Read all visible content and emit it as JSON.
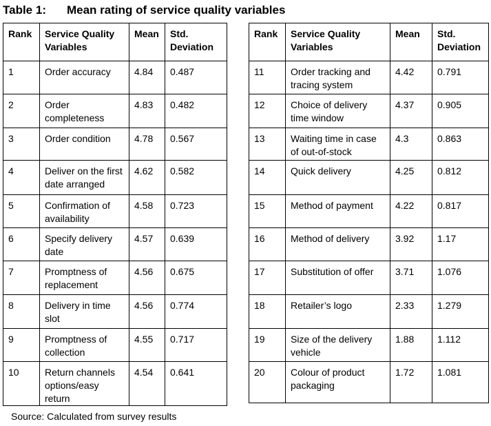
{
  "title_label": "Table 1:",
  "title": "Mean rating of service quality variables",
  "headers": [
    "Rank",
    "Service Quality Variables",
    "Mean",
    "Std. Deviation"
  ],
  "left_rows": [
    [
      "1",
      "Order accuracy",
      "4.84",
      "0.487"
    ],
    [
      "2",
      "Order completeness",
      "4.83",
      "0.482"
    ],
    [
      "3",
      "Order condition",
      "4.78",
      "0.567"
    ],
    [
      "4",
      "Deliver on the first date arranged",
      "4.62",
      "0.582"
    ],
    [
      "5",
      "Confirmation of availability",
      "4.58",
      "0.723"
    ],
    [
      "6",
      "Specify delivery date",
      "4.57",
      "0.639"
    ],
    [
      "7",
      "Promptness of replacement",
      "4.56",
      "0.675"
    ],
    [
      "8",
      "Delivery in time slot",
      "4.56",
      "0.774"
    ],
    [
      "9",
      "Promptness of collection",
      "4.55",
      "0.717"
    ],
    [
      "10",
      "Return channels options/easy return",
      "4.54",
      "0.641"
    ]
  ],
  "right_rows": [
    [
      "11",
      "Order tracking and tracing system",
      "4.42",
      "0.791"
    ],
    [
      "12",
      "Choice of delivery time window",
      "4.37",
      "0.905"
    ],
    [
      "13",
      "Waiting time in case of out-of-stock",
      "4.3",
      "0.863"
    ],
    [
      "14",
      "Quick delivery",
      "4.25",
      "0.812"
    ],
    [
      "15",
      "Method of payment",
      "4.22",
      "0.817"
    ],
    [
      "16",
      "Method of delivery",
      "3.92",
      "1.17"
    ],
    [
      "17",
      "Substitution of offer",
      "3.71",
      "1.076"
    ],
    [
      "18",
      "Retailer’s logo",
      "2.33",
      "1.279"
    ],
    [
      "19",
      "Size of the delivery vehicle",
      "1.88",
      "1.112"
    ],
    [
      "20",
      "Colour of product packaging",
      "1.72",
      "1.081"
    ]
  ],
  "source": "Source: Calculated from survey results"
}
